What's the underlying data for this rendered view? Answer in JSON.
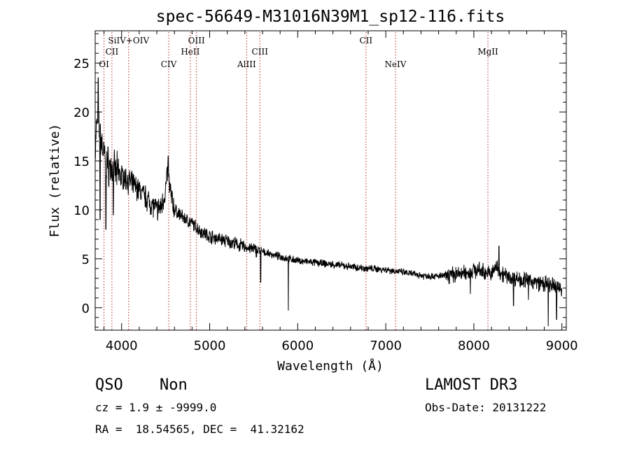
{
  "chart_data": {
    "type": "line",
    "title": "spec-56649-M31016N39M1_sp12-116.fits",
    "xlabel": "Wavelength (Å)",
    "ylabel": "Flux (relative)",
    "xlim": [
      3700,
      9050
    ],
    "ylim": [
      -2.3,
      28.3
    ],
    "xticks": [
      4000,
      5000,
      6000,
      7000,
      8000,
      9000
    ],
    "yticks": [
      0,
      5,
      10,
      15,
      20,
      25
    ],
    "grid": false,
    "line_color": "#000000",
    "marker_color": "#b22222",
    "continuum": {
      "x": [
        3700,
        3720,
        3760,
        3800,
        3850,
        3900,
        4000,
        4100,
        4200,
        4300,
        4400,
        4450,
        4500,
        4520,
        4560,
        4600,
        4700,
        4800,
        4900,
        5000,
        5200,
        5400,
        5600,
        5800,
        6000,
        6200,
        6400,
        6600,
        6800,
        7000,
        7200,
        7400,
        7600,
        7800,
        7950,
        8000,
        8100,
        8200,
        8250,
        8300,
        8400,
        8600,
        8800,
        9000
      ],
      "y": [
        16,
        19,
        17.5,
        15.5,
        14.5,
        14,
        13.5,
        12.8,
        12,
        11,
        10,
        10.3,
        12,
        14,
        11.5,
        10,
        9.2,
        8.6,
        7.8,
        7.3,
        6.8,
        6.2,
        5.7,
        5.2,
        4.8,
        4.6,
        4.4,
        4.2,
        4,
        3.9,
        3.6,
        3.3,
        3.2,
        3.4,
        3.6,
        3.9,
        3.7,
        3.4,
        4.2,
        3.6,
        3.1,
        2.8,
        2.4,
        2
      ]
    },
    "dips": [
      {
        "x": 3756,
        "y": 9
      },
      {
        "x": 3822,
        "y": 8
      },
      {
        "x": 3905,
        "y": 9.5
      },
      {
        "x": 5580,
        "y": 2.6
      },
      {
        "x": 5893,
        "y": -0.3
      },
      {
        "x": 7960,
        "y": 1.4
      },
      {
        "x": 8450,
        "y": 0.2
      },
      {
        "x": 8620,
        "y": 0.8
      },
      {
        "x": 8845,
        "y": -1.9
      },
      {
        "x": 8940,
        "y": -1.2
      }
    ],
    "spikes": [
      {
        "x": 3735,
        "y": 23.5
      },
      {
        "x": 4530,
        "y": 15.5
      },
      {
        "x": 8285,
        "y": 6.3
      }
    ],
    "line_markers": [
      {
        "label": "OI",
        "x": 3800,
        "row": 3
      },
      {
        "label": "CII",
        "x": 3890,
        "row": 1
      },
      {
        "label": "SiIV+OIV",
        "x": 4080,
        "row": 0
      },
      {
        "label": "CIV",
        "x": 4535,
        "row": 3
      },
      {
        "label": "HeII",
        "x": 4780,
        "row": 1
      },
      {
        "label": "OIII",
        "x": 4850,
        "row": 0
      },
      {
        "label": "AlIII",
        "x": 5420,
        "row": 3
      },
      {
        "label": "CIII",
        "x": 5570,
        "row": 1
      },
      {
        "label": "CII",
        "x": 6775,
        "row": 0
      },
      {
        "label": "NeIV",
        "x": 7110,
        "row": 3
      },
      {
        "label": "MgII",
        "x": 8160,
        "row": 1
      }
    ]
  },
  "info": {
    "class_label": "QSO",
    "subclass_label": "Non",
    "survey": "LAMOST DR3",
    "cz_line": "cz = 1.9 ± -9999.0",
    "obs_date_line": "Obs-Date: 20131222",
    "coords_line": "RA =  18.54565, DEC =  41.32162"
  }
}
